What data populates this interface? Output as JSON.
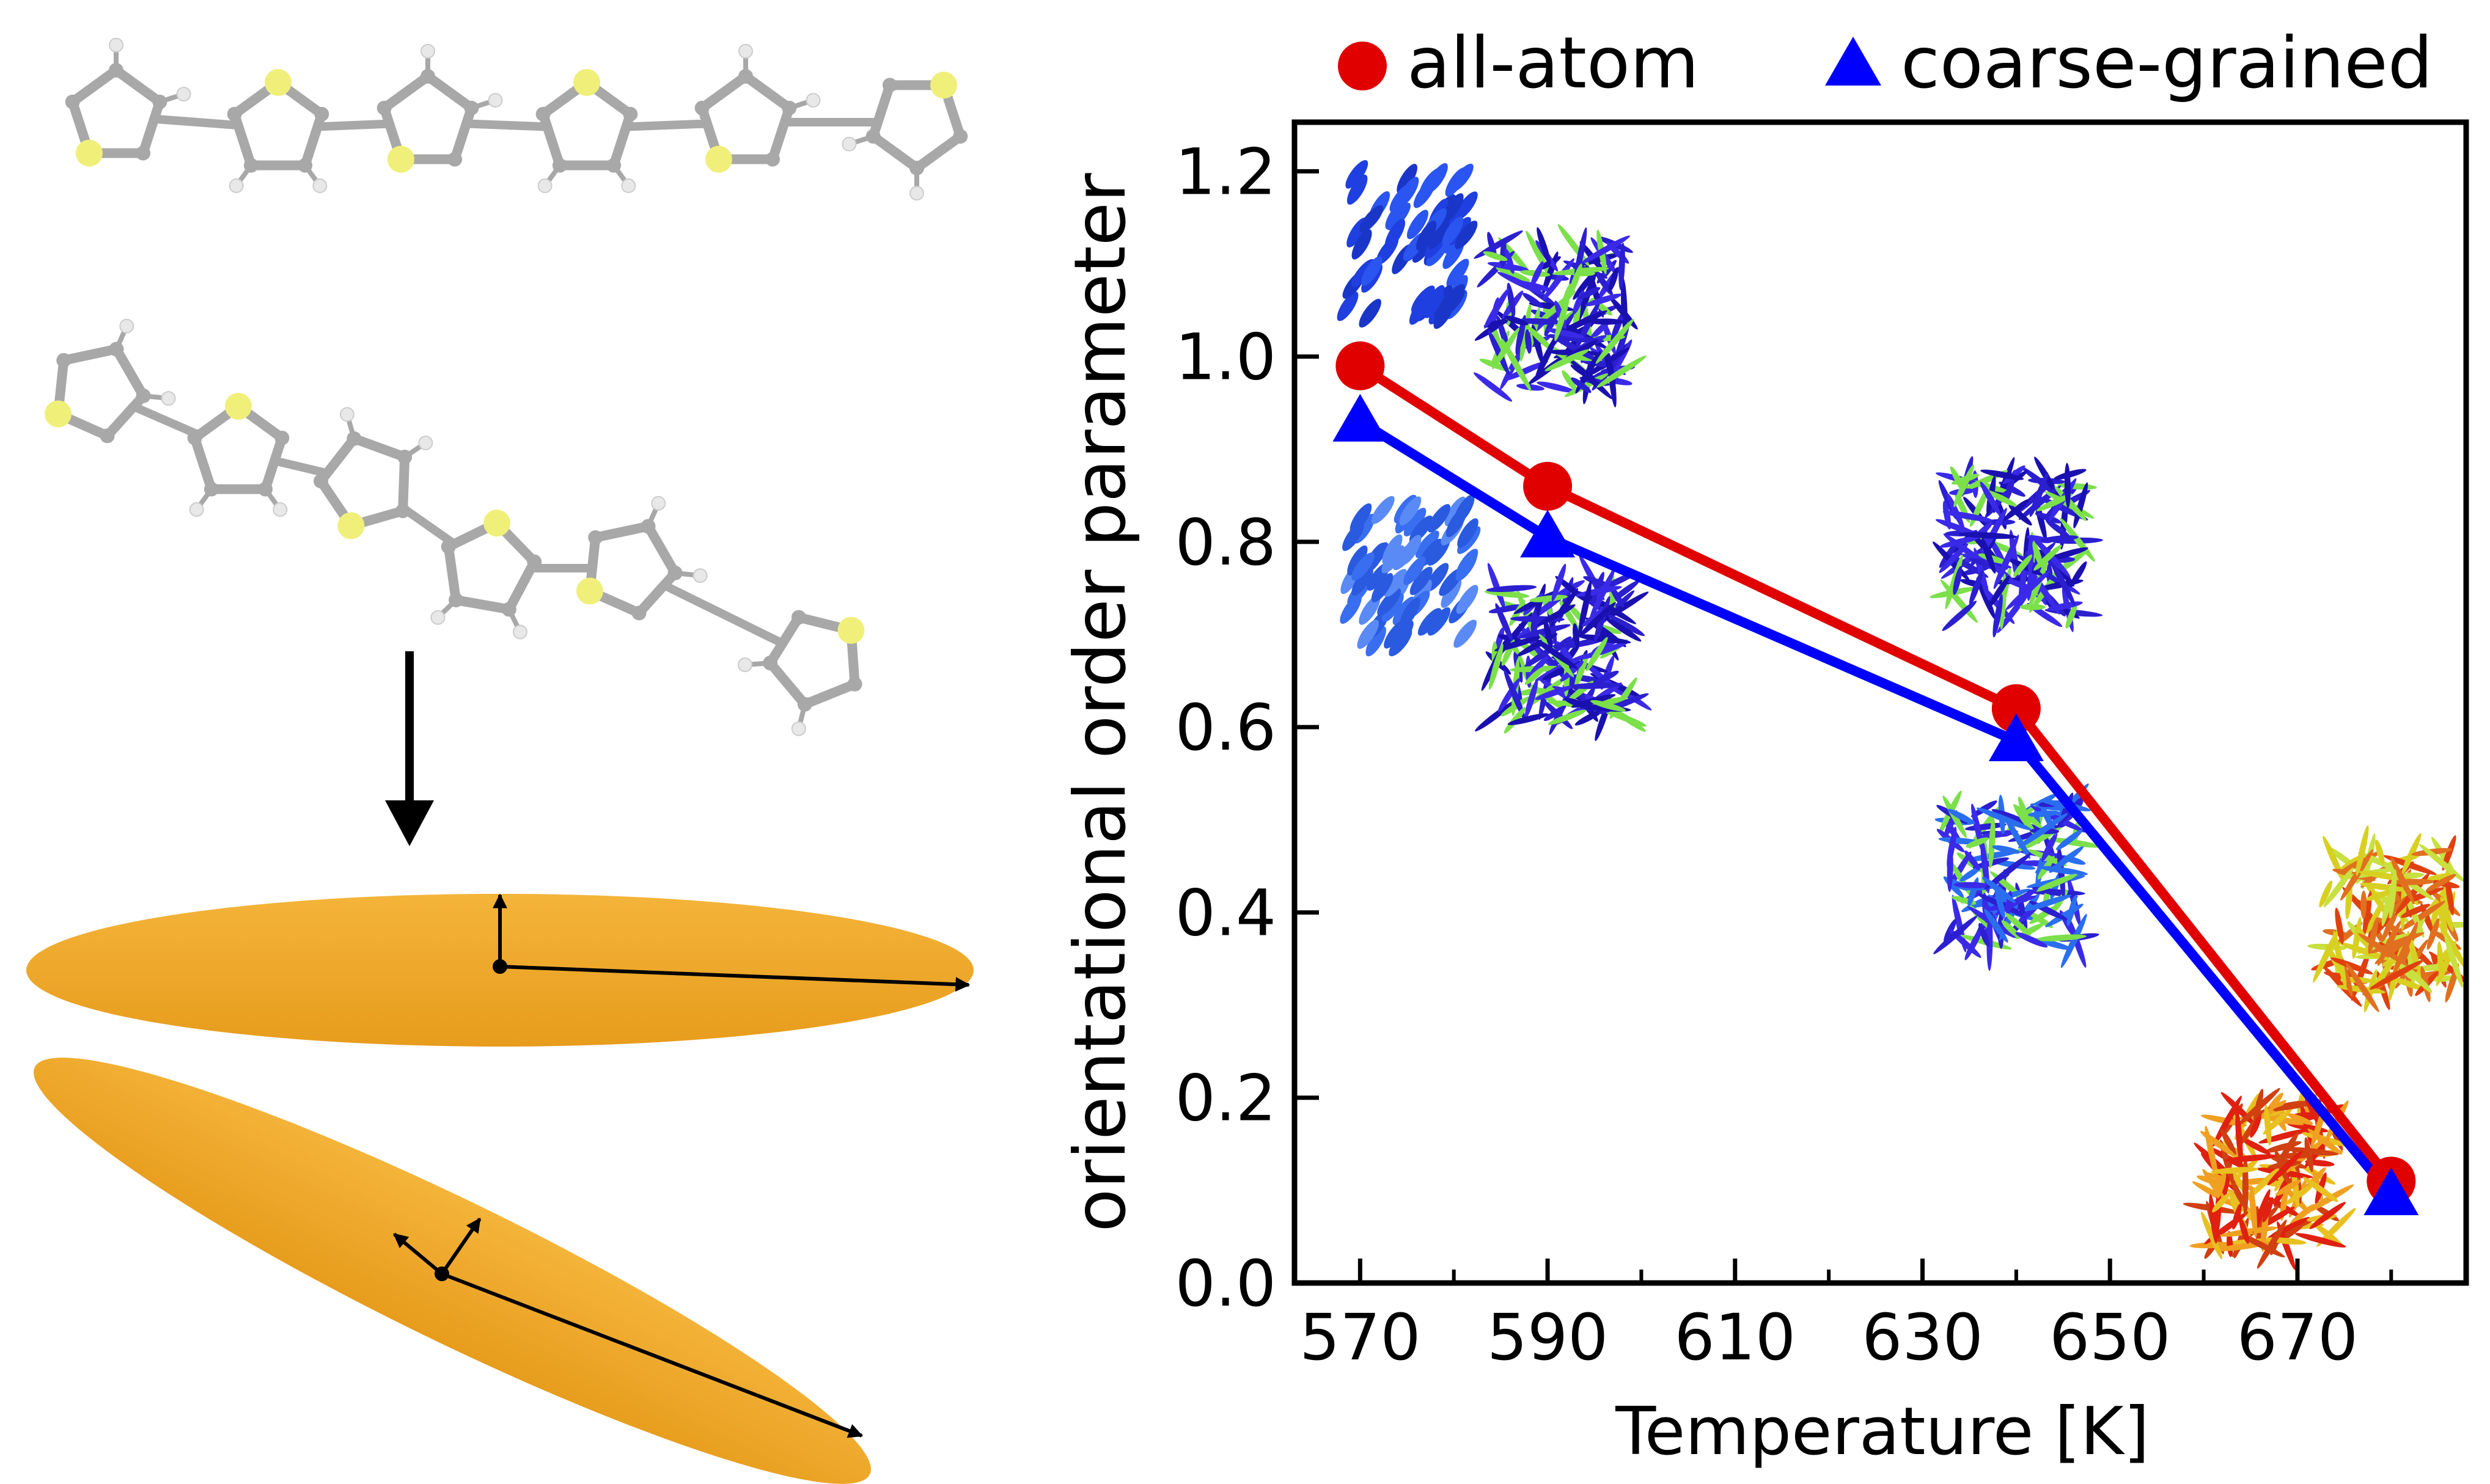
{
  "chart_data": {
    "type": "line",
    "title": "",
    "xlabel": "Temperature [K]",
    "ylabel": "orientational order parameter",
    "xlim": [
      563,
      688
    ],
    "ylim": [
      0.0,
      1.253
    ],
    "x_major_ticks": [
      570,
      590,
      610,
      630,
      650,
      670
    ],
    "x_minor_ticks": [
      580,
      600,
      620,
      640,
      660,
      680
    ],
    "x_tick_labels": [
      "570",
      "590",
      "610",
      "630",
      "650",
      "670"
    ],
    "y_ticks": [
      0.0,
      0.2,
      0.4,
      0.6,
      0.8,
      1.0,
      1.2
    ],
    "y_tick_labels": [
      "0.0",
      "0.2",
      "0.4",
      "0.6",
      "0.8",
      "1.0",
      "1.2"
    ],
    "grid": false,
    "legend_placement": "top, outside",
    "series": [
      {
        "name": "all-atom",
        "marker": "circle",
        "color": "#e00000",
        "x": [
          570,
          590,
          640,
          680
        ],
        "y": [
          0.99,
          0.86,
          0.62,
          0.11
        ]
      },
      {
        "name": "coarse-grained",
        "marker": "triangle",
        "color": "#0000ff",
        "x": [
          570,
          590,
          640,
          680
        ],
        "y": [
          0.93,
          0.805,
          0.585,
          0.095
        ]
      }
    ]
  },
  "colors": {
    "ellipsoid": "#f0a526",
    "sulfur": "#f0ef7a",
    "carbon": "#a8a8a8",
    "hydrogen": "#e8e8e8"
  }
}
